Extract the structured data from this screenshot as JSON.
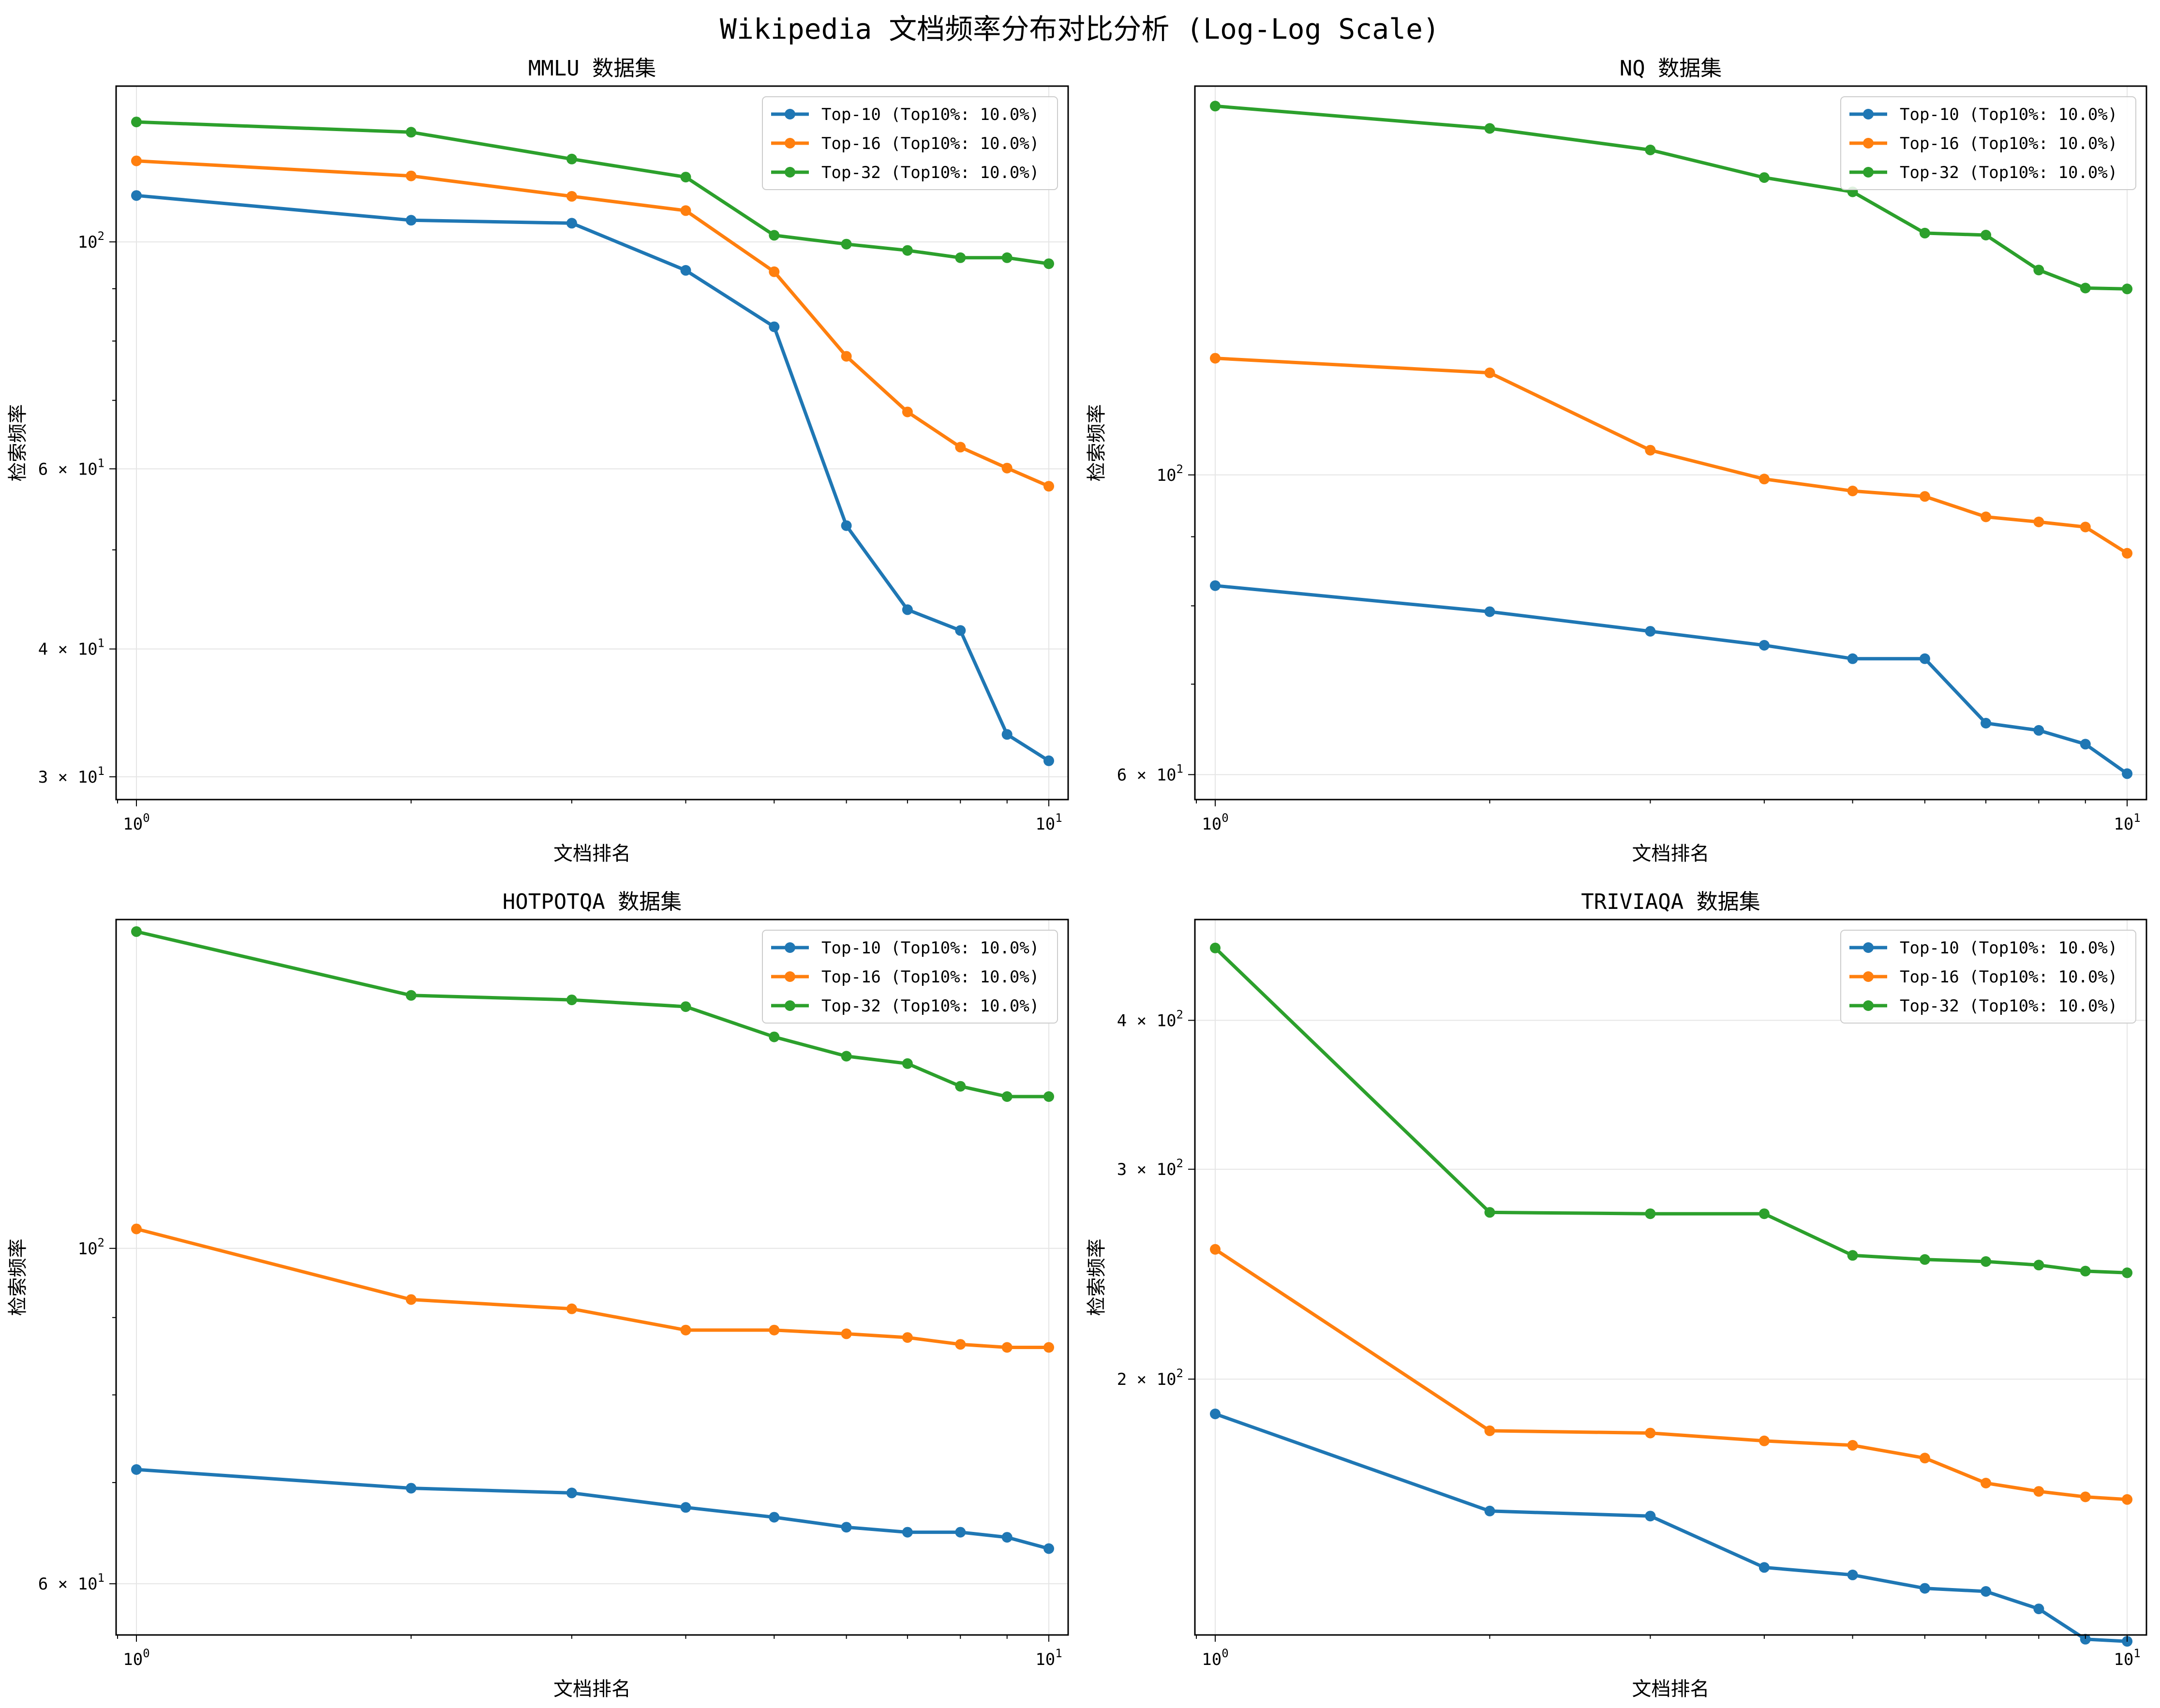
{
  "figure_title": "Wikipedia 文档频率分布对比分析 (Log-Log Scale)",
  "colors": {
    "top10": "#1f77b4",
    "top16": "#ff7f0e",
    "top32": "#2ca02c",
    "grid": "#e5e5e5",
    "axis": "#000000"
  },
  "chart_data": [
    {
      "type": "line",
      "title": "MMLU 数据集",
      "xlabel": "文档排名",
      "ylabel": "检索频率",
      "xscale": "log",
      "yscale": "log",
      "xlim": [
        0.95,
        10.5
      ],
      "ylim": [
        28.5,
        142
      ],
      "x": [
        1,
        2,
        3,
        4,
        5,
        6,
        7,
        8,
        9,
        10
      ],
      "xticks": [
        {
          "value": 1,
          "base": "10",
          "exp": "0"
        },
        {
          "value": 10,
          "base": "10",
          "exp": "1"
        }
      ],
      "yticks": [
        {
          "value": 30,
          "mant": "3",
          "base": "10",
          "exp": "1"
        },
        {
          "value": 40,
          "mant": "4",
          "base": "10",
          "exp": "1"
        },
        {
          "value": 60,
          "mant": "6",
          "base": "10",
          "exp": "1"
        },
        {
          "value": 100,
          "mant": "",
          "base": "10",
          "exp": "2"
        }
      ],
      "minor_yticks": [
        50,
        70,
        80,
        90
      ],
      "legend_position": "upper right",
      "series": [
        {
          "name": "Top-10 (Top10%: 10.0%)",
          "color_key": "top10",
          "values": [
            111,
            105,
            104.3,
            93.8,
            82.6,
            52.8,
            43.7,
            41.7,
            33.0,
            31.1
          ]
        },
        {
          "name": "Top-16 (Top10%: 10.0%)",
          "color_key": "top16",
          "values": [
            120,
            116,
            110.8,
            107.3,
            93.5,
            77.3,
            68.2,
            63.0,
            60.1,
            57.7
          ]
        },
        {
          "name": "Top-32 (Top10%: 10.0%)",
          "color_key": "top32",
          "values": [
            131,
            128,
            120.5,
            115.7,
            101.5,
            99.5,
            98.1,
            96.5,
            96.5,
            95.2
          ]
        }
      ]
    },
    {
      "type": "line",
      "title": "NQ 数据集",
      "xlabel": "文档排名",
      "ylabel": "检索频率",
      "xscale": "log",
      "yscale": "log",
      "xlim": [
        0.95,
        10.5
      ],
      "ylim": [
        57.5,
        194
      ],
      "x": [
        1,
        2,
        3,
        4,
        5,
        6,
        7,
        8,
        9,
        10
      ],
      "xticks": [
        {
          "value": 1,
          "base": "10",
          "exp": "0"
        },
        {
          "value": 10,
          "base": "10",
          "exp": "1"
        }
      ],
      "yticks": [
        {
          "value": 60,
          "mant": "6",
          "base": "10",
          "exp": "1"
        },
        {
          "value": 100,
          "mant": "",
          "base": "10",
          "exp": "2"
        }
      ],
      "minor_yticks": [
        70,
        80,
        90
      ],
      "legend_position": "upper right",
      "series": [
        {
          "name": "Top-10 (Top10%: 10.0%)",
          "color_key": "top10",
          "values": [
            82.8,
            79.2,
            76.6,
            74.8,
            73.1,
            73.1,
            65.5,
            64.7,
            63.2,
            60.1
          ]
        },
        {
          "name": "Top-16 (Top10%: 10.0%)",
          "color_key": "top16",
          "values": [
            122,
            119,
            104.3,
            99.3,
            97.3,
            96.4,
            93.1,
            92.3,
            91.5,
            87.5
          ]
        },
        {
          "name": "Top-32 (Top10%: 10.0%)",
          "color_key": "top32",
          "values": [
            187.5,
            180.5,
            174,
            166,
            162,
            151,
            150.5,
            141.8,
            137.5,
            137.3
          ]
        }
      ]
    },
    {
      "type": "line",
      "title": "HOTPOTQA 数据集",
      "xlabel": "文档排名",
      "ylabel": "检索频率",
      "xscale": "log",
      "yscale": "log",
      "xlim": [
        0.95,
        10.5
      ],
      "ylim": [
        55.5,
        165
      ],
      "x": [
        1,
        2,
        3,
        4,
        5,
        6,
        7,
        8,
        9,
        10
      ],
      "xticks": [
        {
          "value": 1,
          "base": "10",
          "exp": "0"
        },
        {
          "value": 10,
          "base": "10",
          "exp": "1"
        }
      ],
      "yticks": [
        {
          "value": 60,
          "mant": "6",
          "base": "10",
          "exp": "1"
        },
        {
          "value": 100,
          "mant": "",
          "base": "10",
          "exp": "2"
        }
      ],
      "minor_yticks": [
        70,
        80,
        90
      ],
      "legend_position": "upper right",
      "series": [
        {
          "name": "Top-10 (Top10%: 10.0%)",
          "color_key": "top10",
          "values": [
            71.4,
            69.4,
            68.9,
            67.4,
            66.4,
            65.4,
            64.9,
            64.9,
            64.4,
            63.3
          ]
        },
        {
          "name": "Top-16 (Top10%: 10.0%)",
          "color_key": "top16",
          "values": [
            103.0,
            92.5,
            91.2,
            88.3,
            88.3,
            87.8,
            87.3,
            86.4,
            86.0,
            86.0
          ]
        },
        {
          "name": "Top-32 (Top10%: 10.0%)",
          "color_key": "top32",
          "values": [
            162,
            147,
            146,
            144.5,
            138,
            134,
            132.5,
            128,
            126,
            126
          ]
        }
      ]
    },
    {
      "type": "line",
      "title": "TRIVIAQA 数据集",
      "xlabel": "文档排名",
      "ylabel": "检索频率",
      "xscale": "log",
      "yscale": "log",
      "xlim": [
        0.95,
        10.5
      ],
      "ylim": [
        122,
        486
      ],
      "x": [
        1,
        2,
        3,
        4,
        5,
        6,
        7,
        8,
        9,
        10
      ],
      "xticks": [
        {
          "value": 1,
          "base": "10",
          "exp": "0"
        },
        {
          "value": 10,
          "base": "10",
          "exp": "1"
        }
      ],
      "yticks": [
        {
          "value": 200,
          "mant": "2",
          "base": "10",
          "exp": "2"
        },
        {
          "value": 300,
          "mant": "3",
          "base": "10",
          "exp": "2"
        },
        {
          "value": 400,
          "mant": "4",
          "base": "10",
          "exp": "2"
        }
      ],
      "minor_yticks": [],
      "legend_position": "upper right",
      "series": [
        {
          "name": "Top-10 (Top10%: 10.0%)",
          "color_key": "top10",
          "values": [
            187,
            155,
            153.5,
            139,
            137,
            133.5,
            132.7,
            128.3,
            121,
            120.5
          ]
        },
        {
          "name": "Top-16 (Top10%: 10.0%)",
          "color_key": "top16",
          "values": [
            257,
            181,
            180.2,
            177.5,
            176,
            171.7,
            163.6,
            161,
            159.3,
            158.5
          ]
        },
        {
          "name": "Top-32 (Top10%: 10.0%)",
          "color_key": "top32",
          "values": [
            460,
            276,
            275.3,
            275.3,
            254,
            252,
            251,
            249.3,
            246.4,
            245.6
          ]
        }
      ]
    }
  ]
}
